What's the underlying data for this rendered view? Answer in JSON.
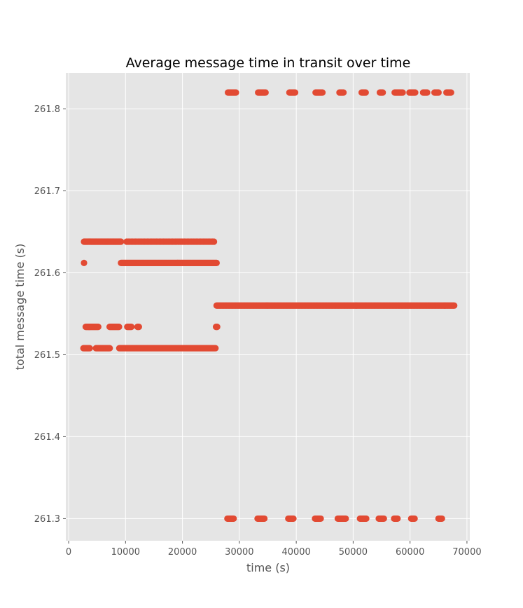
{
  "chart_data": {
    "type": "scatter",
    "title": "Average message time in transit over time",
    "xlabel": "time (s)",
    "ylabel": "total message time (s)",
    "xlim": [
      -500,
      70500
    ],
    "ylim": [
      261.273,
      261.844
    ],
    "xticks": [
      0,
      10000,
      20000,
      30000,
      40000,
      50000,
      60000,
      70000
    ],
    "yticks": [
      261.3,
      261.4,
      261.5,
      261.6,
      261.7,
      261.8
    ],
    "ytick_labels": [
      "261.3",
      "261.4",
      "261.5",
      "261.6",
      "261.7",
      "261.8"
    ],
    "grid": true,
    "style": "ggplot",
    "colors": {
      "points": "#E24A33",
      "panel": "#E5E5E5",
      "grid": "#FFFFFF",
      "tick_text": "#555555"
    },
    "segments": [
      {
        "y": 261.638,
        "x_start": 2700,
        "x_end": 9200,
        "spacing": 110
      },
      {
        "y": 261.638,
        "x_start": 10200,
        "x_end": 25600,
        "spacing": 260
      },
      {
        "y": 261.612,
        "x_start": 2700,
        "x_end": 2700,
        "spacing": 1
      },
      {
        "y": 261.612,
        "x_start": 9200,
        "x_end": 26000,
        "spacing": 140
      },
      {
        "y": 261.534,
        "x_start": 3000,
        "x_end": 5200,
        "spacing": 110
      },
      {
        "y": 261.534,
        "x_start": 7200,
        "x_end": 8900,
        "spacing": 110
      },
      {
        "y": 261.534,
        "x_start": 10300,
        "x_end": 11100,
        "spacing": 120
      },
      {
        "y": 261.534,
        "x_start": 12100,
        "x_end": 12400,
        "spacing": 120
      },
      {
        "y": 261.534,
        "x_start": 25900,
        "x_end": 26100,
        "spacing": 100
      },
      {
        "y": 261.508,
        "x_start": 2600,
        "x_end": 3700,
        "spacing": 110
      },
      {
        "y": 261.508,
        "x_start": 4800,
        "x_end": 7300,
        "spacing": 110
      },
      {
        "y": 261.508,
        "x_start": 8900,
        "x_end": 25800,
        "spacing": 130
      },
      {
        "y": 261.56,
        "x_start": 26000,
        "x_end": 67800,
        "spacing": 160
      },
      {
        "y": 261.82,
        "x_start": 28000,
        "x_end": 29400,
        "spacing": 100
      },
      {
        "y": 261.82,
        "x_start": 33300,
        "x_end": 34600,
        "spacing": 100
      },
      {
        "y": 261.82,
        "x_start": 38800,
        "x_end": 39800,
        "spacing": 100
      },
      {
        "y": 261.82,
        "x_start": 43400,
        "x_end": 44600,
        "spacing": 100
      },
      {
        "y": 261.82,
        "x_start": 47600,
        "x_end": 48300,
        "spacing": 100
      },
      {
        "y": 261.82,
        "x_start": 51500,
        "x_end": 52200,
        "spacing": 100
      },
      {
        "y": 261.82,
        "x_start": 54700,
        "x_end": 55200,
        "spacing": 100
      },
      {
        "y": 261.82,
        "x_start": 57300,
        "x_end": 58700,
        "spacing": 100
      },
      {
        "y": 261.82,
        "x_start": 59900,
        "x_end": 60900,
        "spacing": 100
      },
      {
        "y": 261.82,
        "x_start": 62300,
        "x_end": 63000,
        "spacing": 100
      },
      {
        "y": 261.82,
        "x_start": 64300,
        "x_end": 65000,
        "spacing": 100
      },
      {
        "y": 261.82,
        "x_start": 66400,
        "x_end": 67200,
        "spacing": 100
      },
      {
        "y": 261.3,
        "x_start": 27900,
        "x_end": 29000,
        "spacing": 100
      },
      {
        "y": 261.3,
        "x_start": 33200,
        "x_end": 34400,
        "spacing": 100
      },
      {
        "y": 261.3,
        "x_start": 38600,
        "x_end": 39500,
        "spacing": 100
      },
      {
        "y": 261.3,
        "x_start": 43300,
        "x_end": 44300,
        "spacing": 100
      },
      {
        "y": 261.3,
        "x_start": 47300,
        "x_end": 48700,
        "spacing": 100
      },
      {
        "y": 261.3,
        "x_start": 51200,
        "x_end": 52300,
        "spacing": 100
      },
      {
        "y": 261.3,
        "x_start": 54500,
        "x_end": 55400,
        "spacing": 100
      },
      {
        "y": 261.3,
        "x_start": 57200,
        "x_end": 57800,
        "spacing": 100
      },
      {
        "y": 261.3,
        "x_start": 60200,
        "x_end": 60800,
        "spacing": 100
      },
      {
        "y": 261.3,
        "x_start": 65000,
        "x_end": 65600,
        "spacing": 100
      }
    ]
  }
}
